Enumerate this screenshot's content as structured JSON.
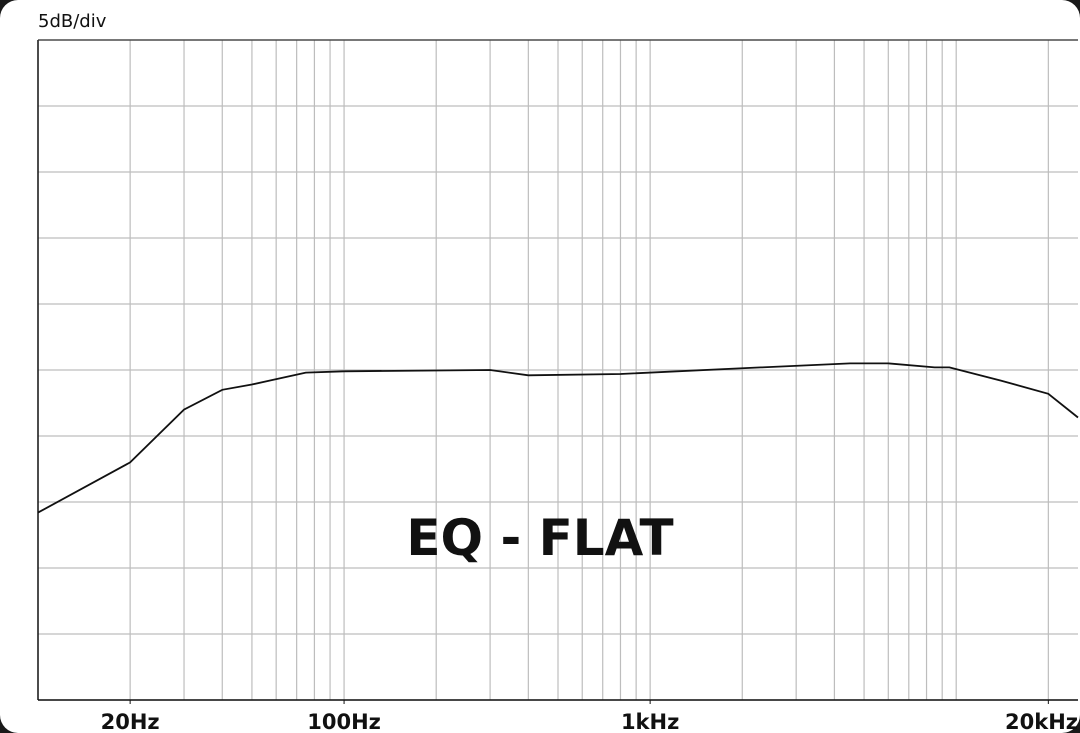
{
  "chart_data": {
    "type": "line",
    "subtitle": "5dB/div",
    "annotation": "EQ - FLAT",
    "xscale": "log",
    "xlim": [
      10,
      25000
    ],
    "xticks": [
      {
        "value": 20,
        "label": "20Hz"
      },
      {
        "value": 100,
        "label": "100Hz"
      },
      {
        "value": 1000,
        "label": "1kHz"
      },
      {
        "value": 20000,
        "label": "20kHz"
      }
    ],
    "xgrid": [
      20,
      30,
      40,
      50,
      60,
      70,
      80,
      90,
      100,
      200,
      300,
      400,
      500,
      600,
      700,
      800,
      900,
      1000,
      2000,
      3000,
      4000,
      5000,
      6000,
      7000,
      8000,
      9000,
      10000,
      20000
    ],
    "ylim": [
      0,
      50
    ],
    "yticks": [
      0,
      5,
      10,
      15,
      20,
      25,
      30,
      35,
      40,
      45,
      50
    ],
    "grid": true,
    "series": [
      {
        "color": "#111111",
        "x": [
          10,
          20,
          30,
          40,
          50,
          75,
          100,
          300,
          400,
          800,
          2300,
          4500,
          6000,
          8500,
          9500,
          14000,
          20000,
          25000
        ],
        "values": [
          14.2,
          18,
          22,
          23.5,
          23.9,
          24.8,
          24.9,
          25,
          24.6,
          24.7,
          25.2,
          25.5,
          25.5,
          25.2,
          25.2,
          24.2,
          23.2,
          21.4
        ]
      }
    ]
  }
}
